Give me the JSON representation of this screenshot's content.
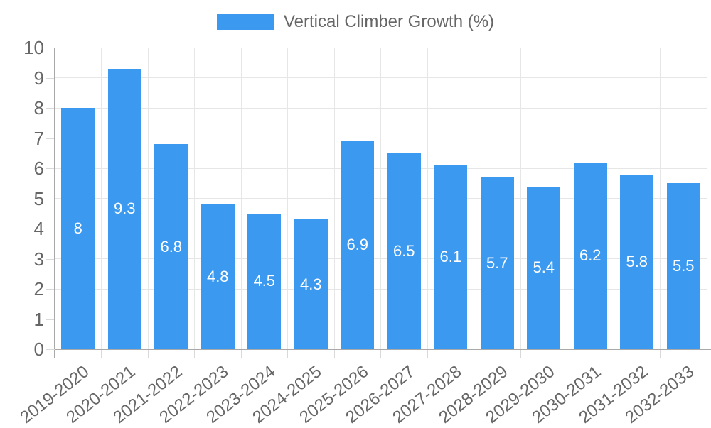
{
  "chart_data": {
    "type": "bar",
    "title": "Vertical Climber Growth (%)",
    "legend_label": "Vertical Climber Growth (%)",
    "legend_position": "top",
    "categories": [
      "2019-2020",
      "2020-2021",
      "2021-2022",
      "2022-2023",
      "2023-2024",
      "2024-2025",
      "2025-2026",
      "2026-2027",
      "2027-2028",
      "2028-2029",
      "2029-2030",
      "2030-2031",
      "2031-2032",
      "2032-2033"
    ],
    "values": [
      8,
      9.3,
      6.8,
      4.8,
      4.5,
      4.3,
      6.9,
      6.5,
      6.1,
      5.7,
      5.4,
      6.2,
      5.8,
      5.5
    ],
    "ylim": [
      0,
      10
    ],
    "yticks": [
      0,
      1,
      2,
      3,
      4,
      5,
      6,
      7,
      8,
      9,
      10
    ],
    "xlabel": "",
    "ylabel": "",
    "grid": true,
    "bar_value_labels_shown": true
  },
  "colors": {
    "bar": "#3b99f0",
    "bar_label": "#ffffff",
    "axis_text": "#666666",
    "grid": "#e6e6e6",
    "tick": "#d9d9d9",
    "axis_line": "#a9a9a9",
    "background": "#ffffff"
  }
}
